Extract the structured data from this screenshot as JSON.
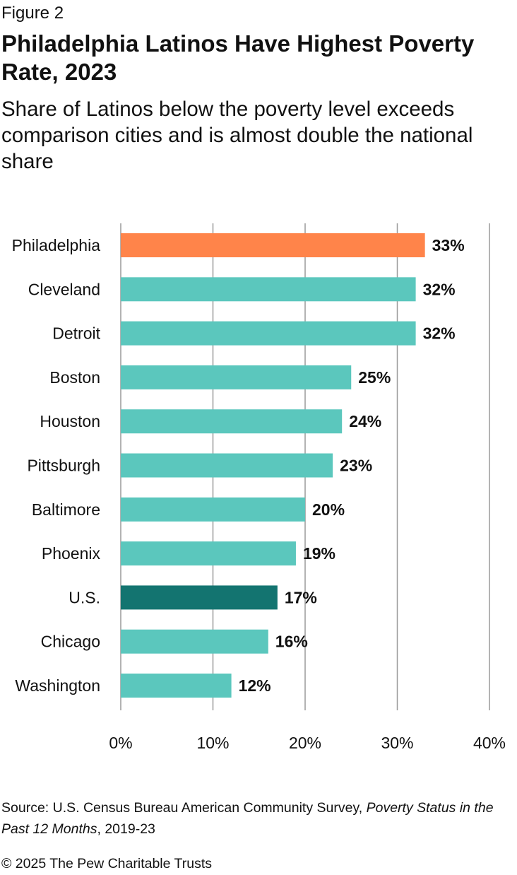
{
  "figure_label": "Figure 2",
  "colors": {
    "highlight": "#FF844A",
    "us": "#137470",
    "default": "#5BC7BD",
    "grid": "#9a9a9a"
  },
  "chart_data": {
    "type": "bar",
    "orientation": "horizontal",
    "title": "Philadelphia Latinos Have Highest Poverty Rate, 2023",
    "subtitle": "Share of Latinos below the poverty level exceeds comparison cities and is almost double the national share",
    "categories": [
      "Philadelphia",
      "Cleveland",
      "Detroit",
      "Boston",
      "Houston",
      "Pittsburgh",
      "Baltimore",
      "Phoenix",
      "U.S.",
      "Chicago",
      "Washington"
    ],
    "values": [
      33,
      32,
      32,
      25,
      24,
      23,
      20,
      19,
      17,
      16,
      12
    ],
    "value_labels": [
      "33%",
      "32%",
      "32%",
      "25%",
      "24%",
      "23%",
      "20%",
      "19%",
      "17%",
      "16%",
      "12%"
    ],
    "bar_colors": [
      "highlight",
      "default",
      "default",
      "default",
      "default",
      "default",
      "default",
      "default",
      "us",
      "default",
      "default"
    ],
    "xlim": [
      0,
      40
    ],
    "xticks": [
      0,
      10,
      20,
      30,
      40
    ],
    "xtick_labels": [
      "0%",
      "10%",
      "20%",
      "30%",
      "40%"
    ],
    "grid": true
  },
  "source": {
    "prefix": "Source: U.S. Census Bureau American Community Survey, ",
    "italic": "Poverty Status in the Past 12 Months",
    "suffix": ", 2019-23"
  },
  "copyright": "© 2025 The Pew Charitable Trusts"
}
